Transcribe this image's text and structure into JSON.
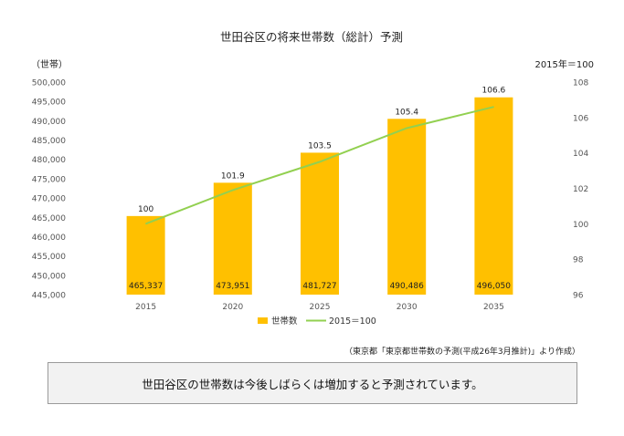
{
  "chart_data": {
    "type": "bar+line",
    "title": "世田谷区の将来世帯数（総計）予測",
    "ylabel_left": "（世帯）",
    "ylabel_right": "2015年＝100",
    "categories": [
      "2015",
      "2020",
      "2025",
      "2030",
      "2035"
    ],
    "y_left": {
      "min": 445000,
      "max": 500000,
      "step": 5000,
      "ticks": [
        "445,000",
        "450,000",
        "455,000",
        "460,000",
        "465,000",
        "470,000",
        "475,000",
        "480,000",
        "485,000",
        "490,000",
        "495,000",
        "500,000"
      ]
    },
    "y_right": {
      "min": 96,
      "max": 108,
      "step": 2,
      "ticks": [
        "96",
        "98",
        "100",
        "102",
        "104",
        "106",
        "108"
      ]
    },
    "series": [
      {
        "name": "世帯数",
        "type": "bar",
        "axis": "left",
        "color": "#FFC000",
        "values": [
          465337,
          473951,
          481727,
          490486,
          496050
        ],
        "labels": [
          "465,337",
          "473,951",
          "481,727",
          "490,486",
          "496,050"
        ]
      },
      {
        "name": "2015＝100",
        "type": "line",
        "axis": "right",
        "color": "#92D050",
        "values": [
          100,
          101.9,
          103.5,
          105.4,
          106.6
        ],
        "labels": [
          "100",
          "101.9",
          "103.5",
          "105.4",
          "106.6"
        ]
      }
    ],
    "legend": "bottom",
    "grid": false
  },
  "footer": {
    "source_note": "（東京都「東京都世帯数の予測(平成26年3月推計)」より作成）",
    "summary": "世田谷区の世帯数は今後しばらくは増加すると予測されています。"
  }
}
